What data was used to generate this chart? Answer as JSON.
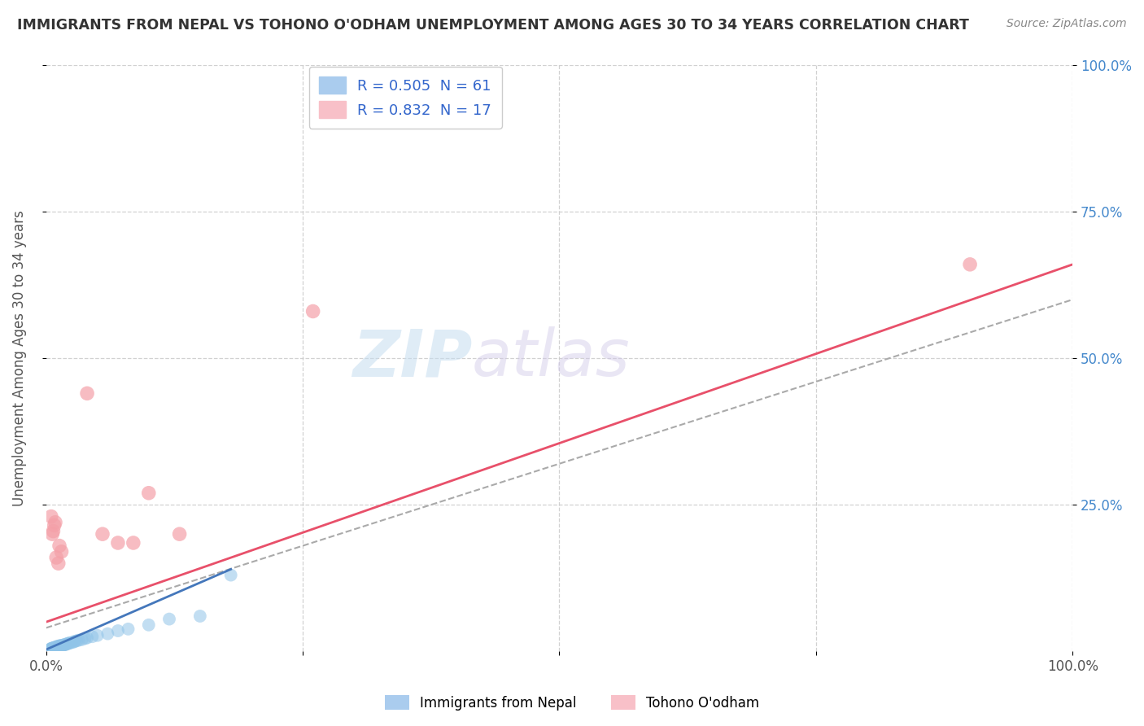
{
  "title": "IMMIGRANTS FROM NEPAL VS TOHONO O'ODHAM UNEMPLOYMENT AMONG AGES 30 TO 34 YEARS CORRELATION CHART",
  "source": "Source: ZipAtlas.com",
  "ylabel": "Unemployment Among Ages 30 to 34 years",
  "xlim": [
    0,
    1
  ],
  "ylim": [
    0,
    1
  ],
  "xtick_labels": [
    "0.0%",
    "",
    "",
    "",
    "100.0%"
  ],
  "xtick_positions": [
    0,
    0.25,
    0.5,
    0.75,
    1.0
  ],
  "right_ytick_labels": [
    "100.0%",
    "75.0%",
    "50.0%",
    "25.0%"
  ],
  "right_ytick_positions": [
    1.0,
    0.75,
    0.5,
    0.25
  ],
  "blue_R": 0.505,
  "blue_N": 61,
  "pink_R": 0.832,
  "pink_N": 17,
  "blue_color": "#90c4e8",
  "pink_color": "#f4a0a8",
  "blue_line_color": "#4477bb",
  "pink_line_color": "#e8506a",
  "dash_line_color": "#aaaaaa",
  "blue_label": "Immigrants from Nepal",
  "pink_label": "Tohono O'odham",
  "watermark_zip": "ZIP",
  "watermark_atlas": "atlas",
  "background_color": "#ffffff",
  "grid_color": "#cccccc",
  "title_color": "#333333",
  "blue_scatter_x": [
    0.005,
    0.005,
    0.005,
    0.005,
    0.005,
    0.005,
    0.005,
    0.005,
    0.005,
    0.005,
    0.006,
    0.006,
    0.006,
    0.006,
    0.007,
    0.007,
    0.007,
    0.008,
    0.008,
    0.008,
    0.009,
    0.009,
    0.01,
    0.01,
    0.01,
    0.01,
    0.011,
    0.011,
    0.012,
    0.012,
    0.013,
    0.013,
    0.014,
    0.014,
    0.015,
    0.015,
    0.016,
    0.017,
    0.018,
    0.019,
    0.02,
    0.021,
    0.022,
    0.023,
    0.025,
    0.027,
    0.028,
    0.03,
    0.032,
    0.035,
    0.038,
    0.04,
    0.045,
    0.05,
    0.06,
    0.07,
    0.08,
    0.1,
    0.12,
    0.15,
    0.18
  ],
  "blue_scatter_y": [
    0.002,
    0.002,
    0.003,
    0.003,
    0.003,
    0.003,
    0.004,
    0.004,
    0.004,
    0.005,
    0.004,
    0.004,
    0.005,
    0.005,
    0.004,
    0.005,
    0.006,
    0.005,
    0.006,
    0.006,
    0.005,
    0.007,
    0.006,
    0.006,
    0.007,
    0.008,
    0.007,
    0.008,
    0.007,
    0.009,
    0.008,
    0.009,
    0.008,
    0.01,
    0.009,
    0.01,
    0.01,
    0.011,
    0.011,
    0.012,
    0.012,
    0.013,
    0.014,
    0.014,
    0.015,
    0.016,
    0.017,
    0.018,
    0.019,
    0.02,
    0.022,
    0.023,
    0.025,
    0.027,
    0.03,
    0.035,
    0.038,
    0.045,
    0.055,
    0.06,
    0.13
  ],
  "pink_scatter_x": [
    0.005,
    0.006,
    0.007,
    0.008,
    0.009,
    0.01,
    0.012,
    0.013,
    0.015,
    0.04,
    0.055,
    0.07,
    0.085,
    0.1,
    0.13,
    0.26,
    0.9
  ],
  "pink_scatter_y": [
    0.23,
    0.2,
    0.205,
    0.215,
    0.22,
    0.16,
    0.15,
    0.18,
    0.17,
    0.44,
    0.2,
    0.185,
    0.185,
    0.27,
    0.2,
    0.58,
    0.66
  ],
  "blue_line": {
    "x0": 0.0,
    "y0": 0.003,
    "x1": 0.18,
    "y1": 0.14
  },
  "pink_line": {
    "x0": 0.0,
    "y0": 0.05,
    "x1": 1.0,
    "y1": 0.66
  },
  "dash_line": {
    "x0": 0.0,
    "y0": 0.04,
    "x1": 1.0,
    "y1": 0.6
  }
}
